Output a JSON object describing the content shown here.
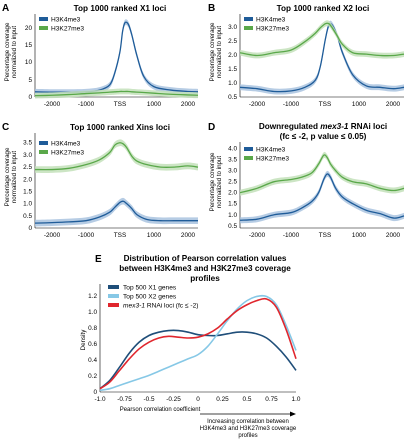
{
  "colors": {
    "h3k4me3": "#1f5c99",
    "h3k4me3_band": "#a9c3df",
    "h3k27me3": "#5aa84a",
    "h3k27me3_band": "#c3e0ba",
    "x1": "#1f4e79",
    "x2": "#86c8e6",
    "rnai": "#e0262d"
  },
  "panels": [
    {
      "letter": "A",
      "title": "Top 1000 ranked X1 loci",
      "ylabel1": "Percentage coverage",
      "ylabel2": "normalized to input",
      "yticks": [
        "0",
        "5",
        "10",
        "15",
        "20"
      ],
      "xticks": [
        "-2000",
        "-1000",
        "TSS",
        "1000",
        "2000"
      ],
      "legend": [
        "H3K4me3",
        "H3K27me3"
      ]
    },
    {
      "letter": "B",
      "title": "Top 1000 ranked X2 loci",
      "ylabel1": "Percentage coverage",
      "ylabel2": "normalized to input",
      "yticks": [
        "0.5",
        "1.0",
        "1.5",
        "2.0",
        "2.5",
        "3.0"
      ],
      "xticks": [
        "-2000",
        "-1000",
        "TSS",
        "1000",
        "2000"
      ],
      "legend": [
        "H3K4me3",
        "H3K27me3"
      ]
    },
    {
      "letter": "C",
      "title": "Top 1000 ranked Xins loci",
      "ylabel1": "Percentage coverage",
      "ylabel2": "normalized to input",
      "yticks": [
        "0",
        "0.5",
        "1.0",
        "1.5",
        "2.0",
        "2.5",
        "3.0",
        "3.5"
      ],
      "xticks": [
        "-2000",
        "-1000",
        "TSS",
        "1000",
        "2000"
      ],
      "legend": [
        "H3K4me3",
        "H3K27me3"
      ]
    },
    {
      "letter": "D",
      "title_pre": "Downregulated ",
      "title_em": "mex3-1",
      "title_post": " RNAi loci",
      "title2": "(fc ≤ -2, p value ≤ 0.05)",
      "ylabel1": "Percentage coverage",
      "ylabel2": "normalized to input",
      "yticks": [
        "0.5",
        "1.0",
        "1.5",
        "2.0",
        "2.5",
        "3.0",
        "3.5",
        "4.0"
      ],
      "xticks": [
        "-2000",
        "-1000",
        "TSS",
        "1000",
        "2000"
      ],
      "legend": [
        "H3K4me3",
        "H3K27me3"
      ]
    }
  ],
  "panel_e": {
    "letter": "E",
    "title": [
      "Distribution of Pearson correlation values",
      "between H3K4me3 and H3K27me3 coverage",
      "profiles"
    ],
    "ylabel": "Density",
    "yticks": [
      "0",
      "0.2",
      "0.4",
      "0.6",
      "0.8",
      "1.0",
      "1.2"
    ],
    "xticks": [
      "-1.0",
      "-0.75",
      "-0.5",
      "-0.25",
      "0",
      "0.25",
      "0.5",
      "0.75",
      "1.0"
    ],
    "xlabel": "Pearson correlation coefficient",
    "arrow_note": [
      "Increasing correlation between",
      "H3K4me3 and H3K27me3 coverage",
      "profiles"
    ],
    "legend": [
      {
        "text": "Top 500 X1 genes"
      },
      {
        "text": "Top 500 X2 genes"
      },
      {
        "em": "mex3-1",
        "text": " RNAi loci (fc ≤ -2)"
      }
    ]
  },
  "chart_data": [
    {
      "type": "line",
      "panel": "A",
      "title": "Top 1000 ranked X1 loci",
      "ylabel": "Percentage coverage normalized to input",
      "ylim": [
        0,
        24
      ],
      "xlim": [
        -2500,
        2300
      ],
      "x": [
        -2500,
        -2000,
        -1500,
        -1000,
        -600,
        -300,
        -150,
        0,
        80,
        150,
        250,
        350,
        500,
        700,
        1000,
        1500,
        2000,
        2300
      ],
      "series": [
        {
          "name": "H3K4me3",
          "values": [
            1.5,
            1.4,
            1.4,
            1.5,
            2,
            3.5,
            7,
            13,
            19,
            21.5,
            21,
            18,
            12,
            6,
            3,
            2,
            1.6,
            1.5
          ]
        },
        {
          "name": "H3K27me3",
          "values": [
            0.4,
            0.5,
            0.7,
            1,
            1.2,
            1.4,
            1.5,
            1.6,
            1.6,
            1.6,
            1.6,
            1.5,
            1.4,
            1.3,
            1.1,
            0.8,
            0.6,
            0.5
          ]
        }
      ]
    },
    {
      "type": "line",
      "panel": "B",
      "title": "Top 1000 ranked X2 loci",
      "ylabel": "Percentage coverage normalized to input",
      "ylim": [
        0.4,
        3.4
      ],
      "xlim": [
        -2500,
        2300
      ],
      "x": [
        -2500,
        -2000,
        -1500,
        -1000,
        -600,
        -300,
        -150,
        0,
        100,
        200,
        350,
        500,
        800,
        1200,
        1600,
        2000,
        2300
      ],
      "series": [
        {
          "name": "H3K4me3",
          "values": [
            0.75,
            0.7,
            0.6,
            0.62,
            0.75,
            1.0,
            1.5,
            2.5,
            3.0,
            3.0,
            2.6,
            2.0,
            1.2,
            0.8,
            0.75,
            0.7,
            0.75
          ]
        },
        {
          "name": "H3K27me3",
          "values": [
            2.0,
            1.9,
            2.0,
            2.1,
            2.4,
            2.7,
            2.9,
            3.05,
            3.05,
            2.9,
            2.6,
            2.3,
            2.0,
            1.95,
            1.9,
            1.9,
            1.95
          ]
        }
      ]
    },
    {
      "type": "line",
      "panel": "C",
      "title": "Top 1000 ranked Xins loci",
      "ylabel": "Percentage coverage normalized to input",
      "ylim": [
        0,
        3.9
      ],
      "xlim": [
        -2500,
        2300
      ],
      "x": [
        -2500,
        -2000,
        -1500,
        -1000,
        -600,
        -300,
        -150,
        0,
        100,
        200,
        350,
        500,
        800,
        1200,
        1600,
        2000,
        2300
      ],
      "series": [
        {
          "name": "H3K4me3",
          "values": [
            0.2,
            0.22,
            0.25,
            0.3,
            0.45,
            0.65,
            0.85,
            1.05,
            1.1,
            1.0,
            0.8,
            0.55,
            0.35,
            0.3,
            0.3,
            0.3,
            0.3
          ]
        },
        {
          "name": "H3K27me3",
          "values": [
            2.4,
            2.4,
            2.45,
            2.6,
            2.8,
            3.1,
            3.4,
            3.5,
            3.45,
            3.3,
            2.95,
            2.75,
            2.6,
            2.5,
            2.5,
            2.55,
            2.5
          ]
        }
      ]
    },
    {
      "type": "line",
      "panel": "D",
      "title": "Downregulated mex3-1 RNAi loci (fc ≤ -2, p value ≤ 0.05)",
      "ylabel": "Percentage coverage normalized to input",
      "ylim": [
        0.4,
        4.3
      ],
      "xlim": [
        -2500,
        2300
      ],
      "x": [
        -2500,
        -2000,
        -1500,
        -1000,
        -700,
        -400,
        -200,
        -50,
        50,
        150,
        300,
        500,
        800,
        1200,
        1600,
        2000,
        2300
      ],
      "series": [
        {
          "name": "H3K4me3",
          "values": [
            0.75,
            0.8,
            1.0,
            1.1,
            1.3,
            1.6,
            2.0,
            2.6,
            2.85,
            2.7,
            2.2,
            1.8,
            1.5,
            1.2,
            1.05,
            0.85,
            0.95
          ]
        },
        {
          "name": "H3K27me3",
          "values": [
            2.0,
            2.2,
            2.5,
            2.6,
            2.7,
            2.9,
            3.3,
            3.7,
            3.6,
            3.3,
            3.0,
            2.7,
            2.5,
            2.4,
            2.2,
            2.1,
            2.2
          ]
        }
      ]
    },
    {
      "type": "line",
      "panel": "E",
      "title": "Distribution of Pearson correlation values between H3K4me3 and H3K27me3 coverage profiles",
      "xlabel": "Pearson correlation coefficient",
      "ylabel": "Density",
      "xlim": [
        -1.0,
        1.0
      ],
      "ylim": [
        0,
        1.3
      ],
      "x": [
        -1.0,
        -0.9,
        -0.8,
        -0.7,
        -0.6,
        -0.5,
        -0.4,
        -0.3,
        -0.2,
        -0.1,
        0,
        0.1,
        0.2,
        0.3,
        0.4,
        0.5,
        0.6,
        0.7,
        0.8,
        0.9,
        1.0
      ],
      "series": [
        {
          "name": "Top 500 X1 genes",
          "values": [
            0.04,
            0.14,
            0.3,
            0.47,
            0.6,
            0.68,
            0.72,
            0.74,
            0.74,
            0.72,
            0.69,
            0.68,
            0.68,
            0.7,
            0.72,
            0.72,
            0.7,
            0.65,
            0.55,
            0.42,
            0.26
          ]
        },
        {
          "name": "Top 500 X2 genes",
          "values": [
            0.02,
            0.04,
            0.08,
            0.12,
            0.16,
            0.2,
            0.25,
            0.3,
            0.35,
            0.4,
            0.45,
            0.55,
            0.7,
            0.86,
            1.0,
            1.1,
            1.15,
            1.15,
            1.05,
            0.8,
            0.5
          ]
        },
        {
          "name": "mex3-1 RNAi loci (fc ≤ -2)",
          "values": [
            0.04,
            0.12,
            0.26,
            0.4,
            0.52,
            0.6,
            0.65,
            0.67,
            0.66,
            0.65,
            0.66,
            0.7,
            0.77,
            0.88,
            0.98,
            1.05,
            1.1,
            1.12,
            1.02,
            0.75,
            0.4
          ]
        }
      ]
    }
  ]
}
